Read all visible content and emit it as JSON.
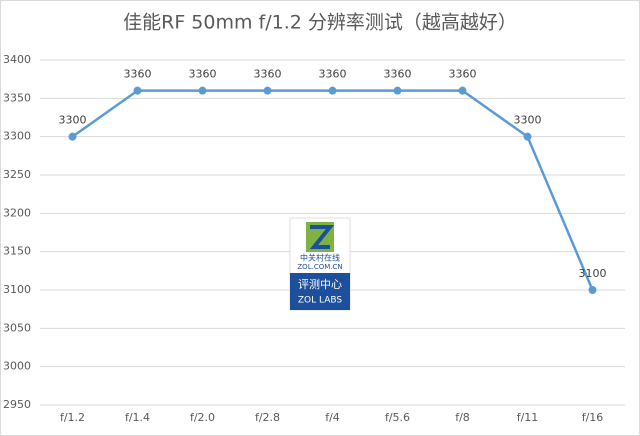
{
  "chart_data": {
    "type": "line",
    "title": "佳能RF 50mm f/1.2 分辨率测试（越高越好）",
    "categories": [
      "f/1.2",
      "f/1.4",
      "f/2.0",
      "f/2.8",
      "f/4",
      "f/5.6",
      "f/8",
      "f/11",
      "f/16"
    ],
    "values": [
      3300,
      3360,
      3360,
      3360,
      3360,
      3360,
      3360,
      3300,
      3100
    ],
    "color": "#5b9bd5",
    "ylim": [
      2950,
      3400
    ],
    "yticks": [
      2950,
      3000,
      3050,
      3100,
      3150,
      3200,
      3250,
      3300,
      3350,
      3400
    ],
    "grid": true,
    "data_labels": true
  },
  "watermark": {
    "site": "中关村在线",
    "url": "ZOL.COM.CN",
    "name": "评测中心",
    "lab": "ZOL LABS"
  }
}
